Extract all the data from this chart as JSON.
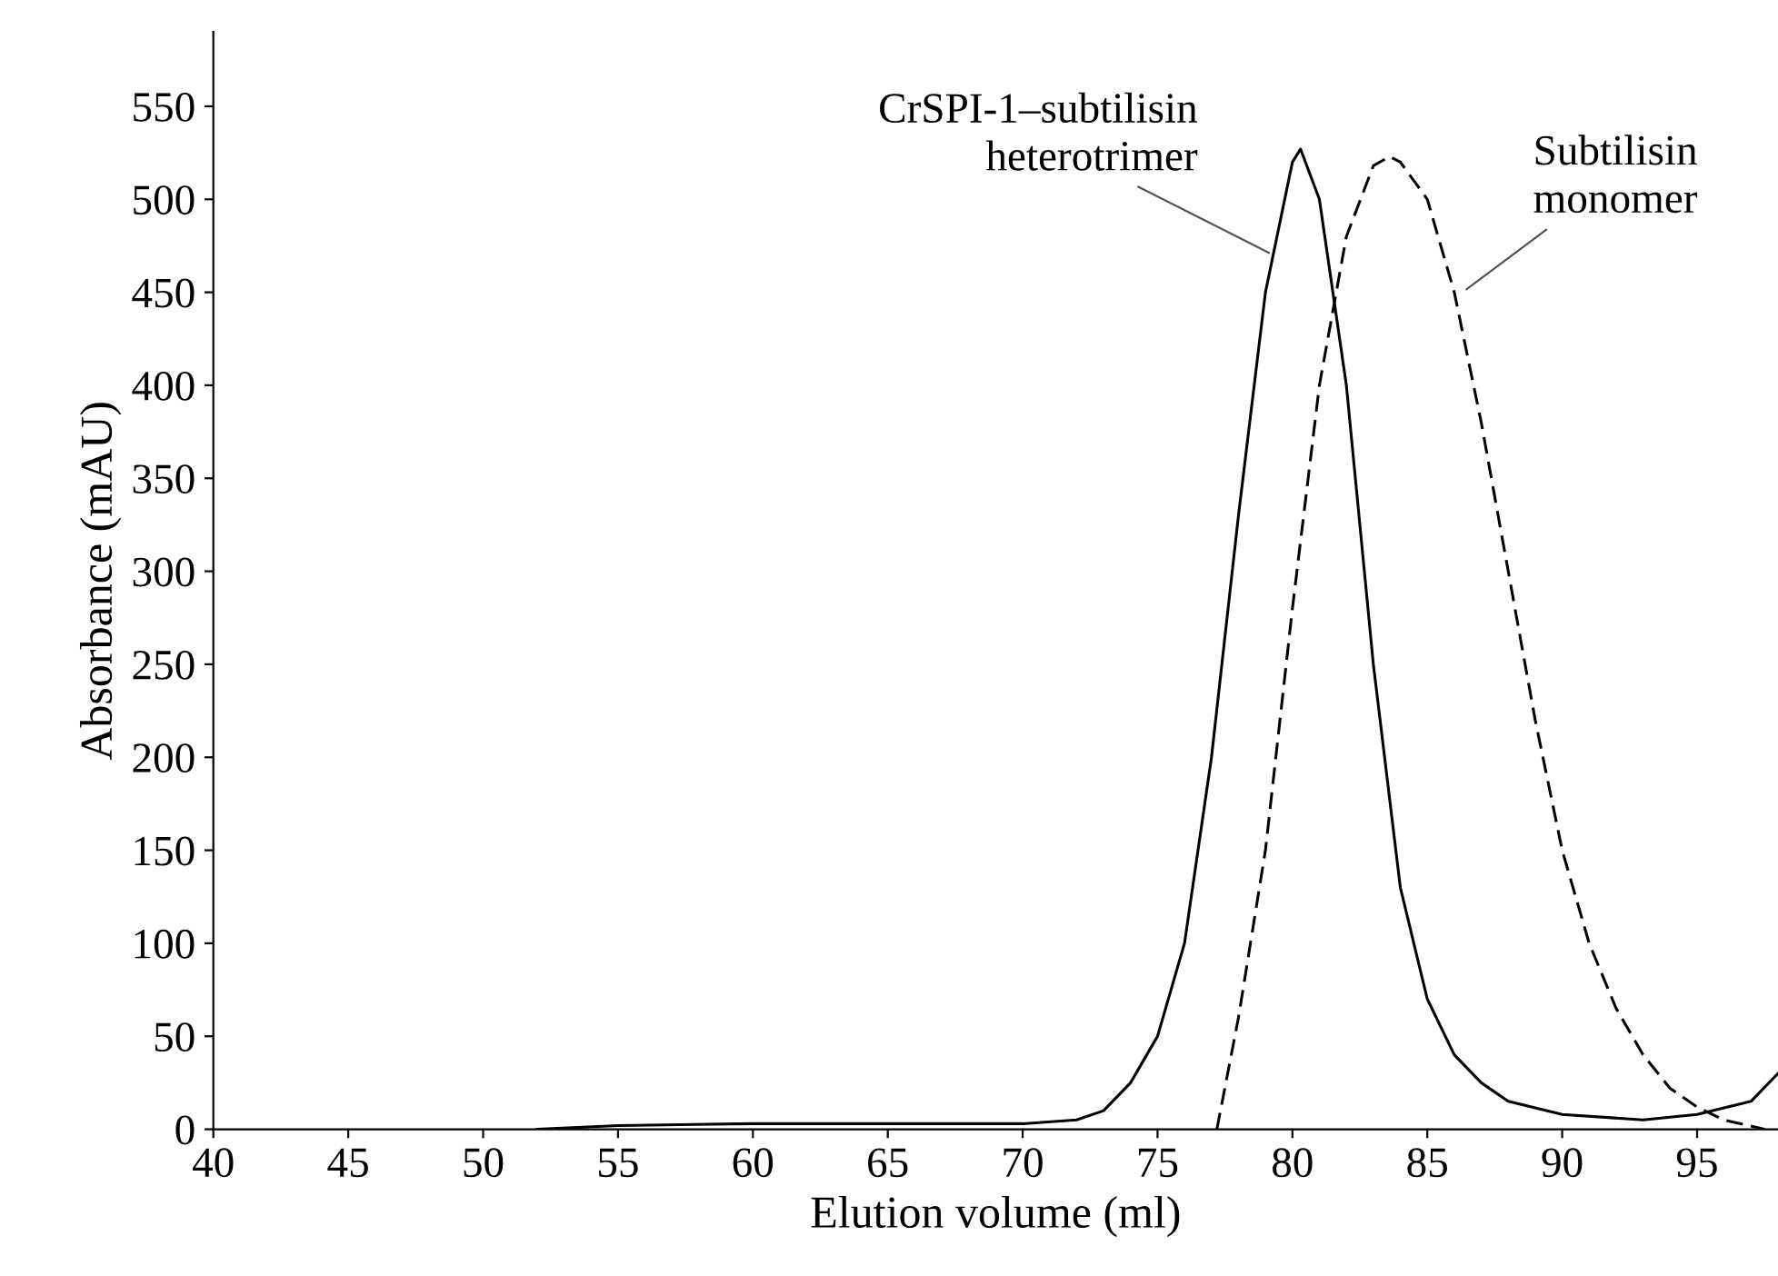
{
  "chart_data": {
    "type": "line",
    "xlabel": "Elution volume (ml)",
    "ylabel": "Absorbance (mAU)",
    "xlim": [
      40,
      98
    ],
    "ylim": [
      0,
      590
    ],
    "xticks": [
      40,
      45,
      50,
      55,
      60,
      65,
      70,
      75,
      80,
      85,
      90,
      95
    ],
    "yticks": [
      0,
      50,
      100,
      150,
      200,
      250,
      300,
      350,
      400,
      450,
      500,
      550
    ],
    "series": [
      {
        "color": "#000000",
        "line_style": "solid",
        "x": [
          52,
          55,
          60,
          65,
          70,
          72,
          73,
          74,
          75,
          76,
          77,
          78,
          79,
          80,
          80.3,
          81,
          82,
          83,
          84,
          85,
          86,
          87,
          88,
          90,
          93,
          95,
          97,
          98
        ],
        "values": [
          0,
          2,
          3,
          3,
          3,
          5,
          10,
          25,
          50,
          100,
          200,
          330,
          450,
          520,
          527,
          500,
          400,
          250,
          130,
          70,
          40,
          25,
          15,
          8,
          5,
          8,
          15,
          30
        ]
      },
      {
        "color": "#000000",
        "line_style": "dashed",
        "x": [
          77.2,
          78,
          79,
          80,
          81,
          82,
          83,
          83.6,
          84,
          85,
          86,
          87,
          88,
          89,
          90,
          91,
          92,
          93,
          94,
          95,
          96,
          97.5
        ],
        "values": [
          0,
          60,
          150,
          280,
          400,
          480,
          518,
          523,
          520,
          500,
          450,
          380,
          300,
          220,
          150,
          100,
          65,
          40,
          22,
          12,
          5,
          0
        ]
      }
    ],
    "annotations": [
      {
        "text": "CrSPI-1–subtilisin\nheterotrimer",
        "x": 79.3,
        "y": 470
      },
      {
        "text": "Subtilisin\nmonomer",
        "x": 86.3,
        "y": 450
      }
    ]
  }
}
